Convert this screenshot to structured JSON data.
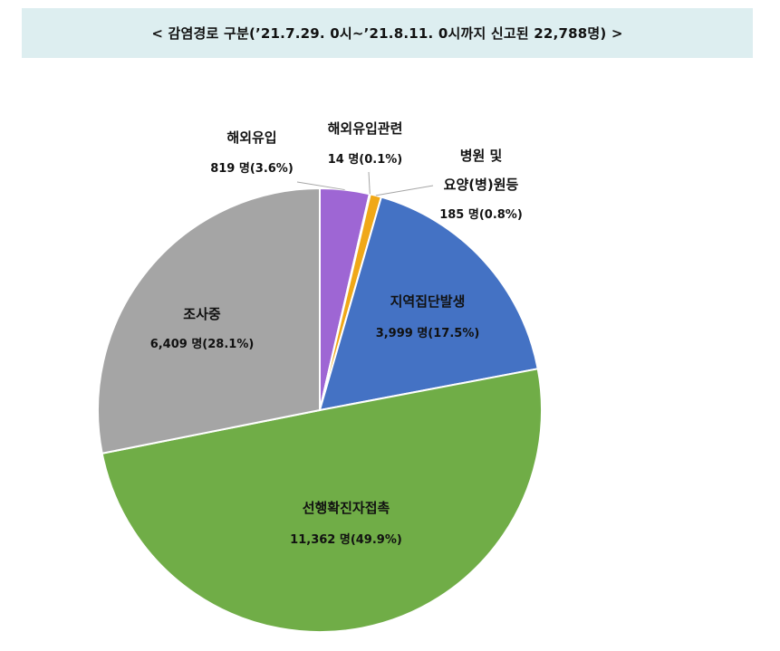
{
  "header": {
    "title": "<  감염경로  구분(’21.7.29.  0시~’21.8.11.  0시까지  신고된  22,788명)  >"
  },
  "chart_data": {
    "type": "pie",
    "title": "감염경로 구분(’21.7.29. 0시~’21.8.11. 0시까지 신고된 22,788명)",
    "total": 22788,
    "slices": [
      {
        "name": "해외유입",
        "count_label": "819 명(3.6%)",
        "value": 819,
        "percent": 3.6,
        "color": "#9e66d4"
      },
      {
        "name": "해외유입관련",
        "count_label": "14 명(0.1%)",
        "value": 14,
        "percent": 0.1,
        "color": "#e8c23a"
      },
      {
        "name": "병원 및 요양(병)원등",
        "name_lines": [
          "병원 및",
          "요양(병)원등"
        ],
        "count_label": "185 명(0.8%)",
        "value": 185,
        "percent": 0.8,
        "color": "#f0a818"
      },
      {
        "name": "지역집단발생",
        "count_label": "3,999 명(17.5%)",
        "value": 3999,
        "percent": 17.5,
        "color": "#4472c4"
      },
      {
        "name": "선행확진자접촉",
        "count_label": "11,362 명(49.9%)",
        "value": 11362,
        "percent": 49.9,
        "color": "#70ad47"
      },
      {
        "name": "조사중",
        "count_label": "6,409 명(28.1%)",
        "value": 6409,
        "percent": 28.1,
        "color": "#a5a5a5"
      }
    ]
  }
}
